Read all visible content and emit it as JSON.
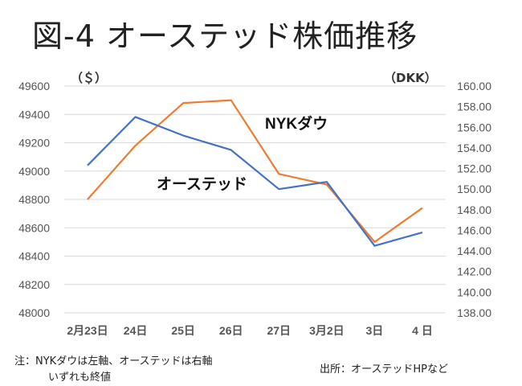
{
  "title": "図-4 オーステッド株価推移",
  "chart_data": {
    "type": "line",
    "title": "図-4 オーステッド株価推移",
    "categories": [
      "2月23日",
      "24日",
      "25日",
      "26日",
      "27日",
      "3月2日",
      "3日",
      "4 日"
    ],
    "left_axis": {
      "label": "（＄）",
      "ylim": [
        48000,
        49600
      ],
      "ticks": [
        "49600",
        "49400",
        "49200",
        "49000",
        "48800",
        "48600",
        "48400",
        "48200",
        "48000"
      ]
    },
    "right_axis": {
      "label": "（DKK）",
      "ylim": [
        138,
        160
      ],
      "ticks": [
        "160.00",
        "158.00",
        "156.00",
        "154.00",
        "152.00",
        "150.00",
        "148.00",
        "146.00",
        "144.00",
        "142.00",
        "140.00",
        "138.00"
      ]
    },
    "series": [
      {
        "name": "NYKダウ",
        "axis": "left",
        "color": "#ED7D31",
        "values": [
          48800,
          49180,
          49480,
          49500,
          48980,
          48905,
          48500,
          48740
        ]
      },
      {
        "name": "オーステッド",
        "axis": "right",
        "color": "#4472C4",
        "values": [
          152.3,
          157.0,
          155.2,
          153.8,
          150.0,
          150.7,
          144.5,
          145.8
        ]
      }
    ],
    "grid": true
  },
  "notes": {
    "line1": "注：NYKダウは左軸、オーステッドは右軸",
    "line2": "いずれも終値",
    "source": "出所：オーステッドHPなど"
  }
}
